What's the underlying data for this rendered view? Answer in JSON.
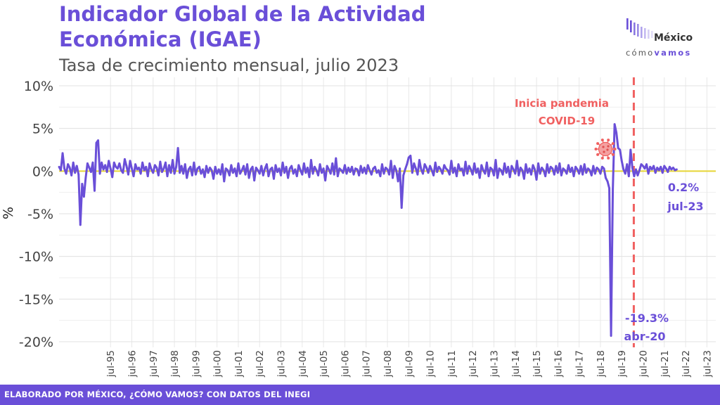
{
  "header": {
    "title": "Indicador Global de la Actividad Económica (IGAE)",
    "subtitle": "Tasa de crecimiento mensual, julio 2023"
  },
  "logo": {
    "name": "México",
    "tag_a": "cómo",
    "tag_b": "vamos"
  },
  "footer": {
    "text": "ELABORADO POR MÉXICO, ¿CÓMO VAMOS? CON DATOS DEL INEGI"
  },
  "colors": {
    "accent": "#6a4fd8",
    "series": "#6a4fd8",
    "zero_line": "#e6d534",
    "pandemic": "#f06060",
    "footer_bg": "#6a4fd8"
  },
  "chart_data": {
    "type": "line",
    "ylabel": "%",
    "ylim": [
      -20,
      10
    ],
    "yticks": [
      10,
      5,
      0,
      -5,
      -10,
      -15,
      -20
    ],
    "ytick_labels": [
      "10%",
      "5%",
      "0%",
      "-5%",
      "-10%",
      "-15%",
      "-20%"
    ],
    "xtick_labels": [
      "jul-95",
      "jul-96",
      "jul-97",
      "jul-98",
      "jul-99",
      "jul-00",
      "jul-01",
      "jul-02",
      "jul-03",
      "jul-04",
      "jul-05",
      "jul-06",
      "jul-07",
      "jul-08",
      "jul-09",
      "jul-10",
      "jul-11",
      "jul-12",
      "jul-13",
      "jul-14",
      "jul-15",
      "jul-16",
      "jul-17",
      "jul-18",
      "jul-19",
      "jul-20",
      "jul-21",
      "jul-22",
      "jul-23"
    ],
    "xlim": [
      "1993-02",
      "2023-12"
    ],
    "grid": true,
    "series": [
      {
        "x_start": "1993-02",
        "frequency": "monthly",
        "values": [
          0.5,
          0.1,
          2.1,
          0.3,
          -0.3,
          0.8,
          0.4,
          -0.5,
          1.0,
          -0.2,
          0.6,
          -0.4,
          -6.3,
          -1.5,
          -3.0,
          -0.8,
          0.9,
          0.4,
          -0.1,
          1.0,
          -2.3,
          3.3,
          3.6,
          -0.3,
          1.0,
          0.2,
          0.7,
          -0.1,
          1.2,
          0.3,
          -0.7,
          1.0,
          0.5,
          0.3,
          0.9,
          0.1,
          -0.2,
          1.4,
          0.6,
          -0.4,
          1.2,
          0.3,
          -0.6,
          0.8,
          0.2,
          0.4,
          -0.3,
          1.0,
          0.1,
          0.5,
          -0.6,
          0.9,
          0.2,
          -0.2,
          0.7,
          0.4,
          -0.5,
          1.1,
          -0.1,
          0.3,
          1.0,
          -0.6,
          0.7,
          -0.2,
          1.3,
          -0.3,
          0.5,
          2.7,
          -0.2,
          0.6,
          -0.3,
          0.8,
          -0.8,
          0.2,
          0.5,
          -0.5,
          1.0,
          -0.4,
          0.3,
          0.5,
          -0.3,
          0.2,
          -0.7,
          0.6,
          -0.2,
          0.4,
          0.1,
          -0.9,
          0.5,
          -0.3,
          0.2,
          -0.4,
          0.8,
          -1.2,
          0.3,
          0.1,
          -0.5,
          0.7,
          -0.2,
          0.3,
          -0.6,
          0.9,
          -0.3,
          0.1,
          0.6,
          -0.4,
          0.8,
          -0.8,
          0.2,
          0.5,
          -1.1,
          0.4,
          0.1,
          -0.3,
          0.6,
          -0.5,
          0.3,
          0.8,
          -0.6,
          0.2,
          0.4,
          -0.9,
          0.7,
          -0.1,
          0.3,
          -0.5,
          1.0,
          -0.2,
          0.5,
          -0.8,
          0.3,
          0.6,
          -0.3,
          0.2,
          -0.6,
          0.7,
          0.1,
          -0.4,
          0.9,
          -0.2,
          0.4,
          -0.7,
          1.3,
          -0.3,
          0.5,
          0.1,
          -0.5,
          0.8,
          -0.2,
          0.3,
          -1.1,
          0.6,
          0.2,
          -0.3,
          0.9,
          -0.4,
          1.5,
          -0.6,
          0.3,
          0.1,
          -0.2,
          0.7,
          -0.3,
          0.4,
          -0.1,
          0.5,
          -0.4,
          0.3,
          0.2,
          -0.5,
          0.6,
          -0.2,
          0.4,
          -0.3,
          0.7,
          0.1,
          -0.4,
          0.3,
          0.5,
          -0.2,
          0.1,
          -0.6,
          0.8,
          -0.3,
          0.4,
          0.2,
          -0.4,
          1.2,
          -0.8,
          0.6,
          0.1,
          -1.2,
          0.3,
          -4.3,
          -0.5,
          0.2,
          0.8,
          1.6,
          1.8,
          -0.2,
          0.9,
          0.3,
          -0.4,
          1.3,
          0.2,
          -0.3,
          0.8,
          0.4,
          -0.2,
          0.6,
          0.1,
          -0.5,
          1.0,
          -0.1,
          0.5,
          0.2,
          -0.3,
          0.7,
          0.3,
          0.1,
          -0.4,
          1.2,
          -0.2,
          0.4,
          -0.6,
          0.8,
          0.1,
          0.3,
          -0.5,
          1.1,
          -0.3,
          0.6,
          0.2,
          -0.4,
          0.9,
          -0.2,
          0.3,
          -0.8,
          0.7,
          0.1,
          -0.3,
          1.0,
          -0.6,
          0.4,
          0.2,
          -0.5,
          1.3,
          -0.8,
          0.3,
          0.1,
          -0.4,
          0.9,
          -0.2,
          0.5,
          -0.7,
          0.6,
          0.2,
          -0.3,
          1.2,
          -0.5,
          0.4,
          0.1,
          -0.9,
          0.8,
          -0.2,
          0.3,
          -0.4,
          0.7,
          0.2,
          -1.0,
          0.9,
          -0.3,
          0.4,
          0.1,
          -0.6,
          0.8,
          -0.2,
          0.5,
          0.3,
          -0.4,
          0.6,
          -0.2,
          0.9,
          -0.5,
          0.3,
          0.1,
          -0.3,
          0.7,
          -0.1,
          0.4,
          -0.6,
          0.5,
          0.2,
          -0.3,
          0.6,
          -0.4,
          0.8,
          -0.2,
          0.3,
          0.1,
          -0.5,
          0.6,
          -0.3,
          0.4,
          0.2,
          -0.3,
          0.5,
          0.3,
          -0.8,
          -1.2,
          -2.0,
          -19.3,
          -2.1,
          5.5,
          4.5,
          2.7,
          2.5,
          1.2,
          0.2,
          -0.3,
          0.8,
          -0.6,
          2.5,
          0.4,
          -0.6,
          0.2,
          -0.5,
          0.1,
          0.8,
          0.6,
          0.3,
          0.8,
          -0.3,
          0.5,
          0.2,
          0.6,
          -0.2,
          0.4,
          0.1,
          0.5,
          -0.2,
          0.6,
          0.3,
          -0.1,
          0.5,
          0.2,
          0.4,
          0.1,
          0.2
        ]
      }
    ],
    "annotations": [
      {
        "text_a": "Inicia pandemia",
        "text_b": "COVID-19",
        "x": "2020-03"
      },
      {
        "text_a": "-19.3%",
        "text_b": "abr-20",
        "x": "2020-04",
        "y": -19.3
      },
      {
        "text_a": "0.2%",
        "text_b": "jul-23",
        "x": "2023-07",
        "y": 0.2
      }
    ]
  }
}
